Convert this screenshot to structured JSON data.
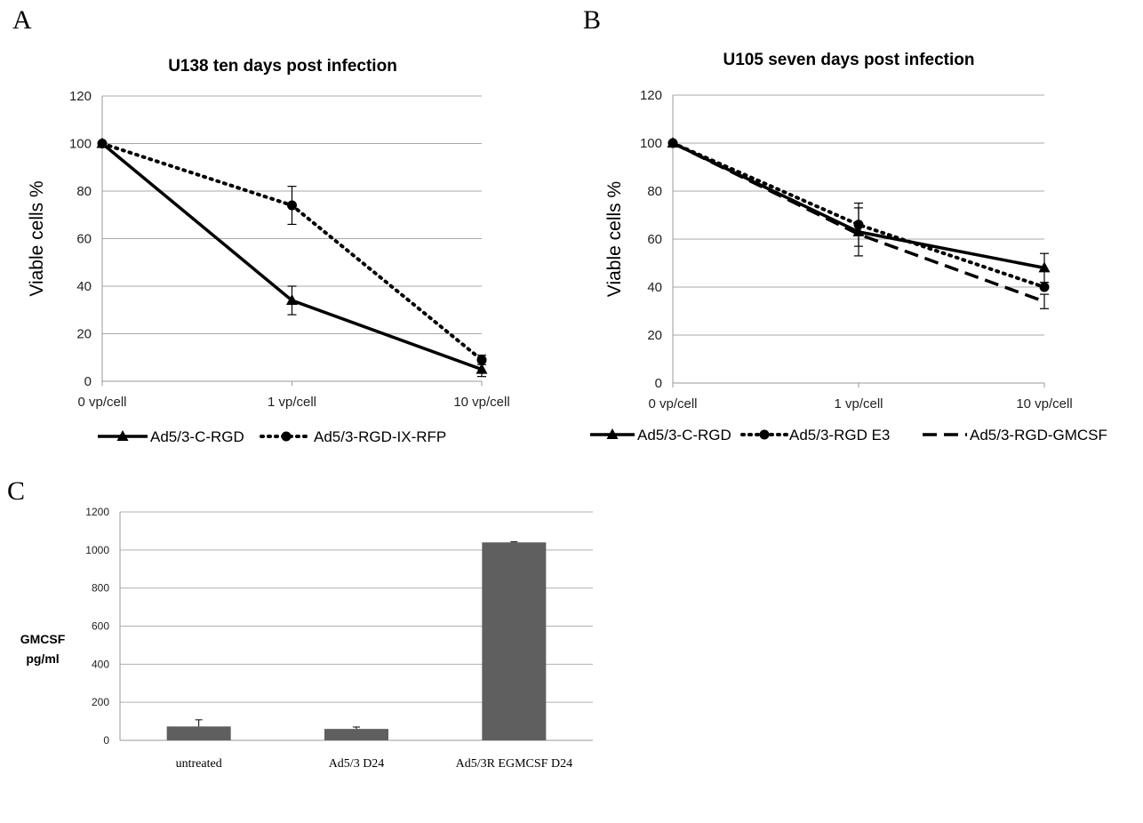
{
  "chart_data": [
    {
      "panel": "A",
      "type": "line",
      "title": "U138 ten days post infection",
      "ylabel": "Viable cells %",
      "xlabel": "",
      "categories": [
        "0 vp/cell",
        "1 vp/cell",
        "10 vp/cell"
      ],
      "ylim": [
        0,
        120
      ],
      "yticks": [
        0,
        20,
        40,
        60,
        80,
        100,
        120
      ],
      "grid": "horizontal",
      "legend": "bottom",
      "series": [
        {
          "name": "Ad5/3-C-RGD",
          "values": [
            100,
            34,
            5
          ],
          "errors": [
            0,
            6,
            3
          ],
          "marker": "triangle",
          "dash": "solid"
        },
        {
          "name": "Ad5/3-RGD-IX-RFP",
          "values": [
            100,
            74,
            9
          ],
          "errors": [
            0,
            8,
            2
          ],
          "marker": "circle",
          "dash": "dotted"
        }
      ]
    },
    {
      "panel": "B",
      "type": "line",
      "title": "U105 seven days post infection",
      "ylabel": "Viable cells %",
      "xlabel": "",
      "categories": [
        "0 vp/cell",
        "1 vp/cell",
        "10 vp/cell"
      ],
      "ylim": [
        0,
        120
      ],
      "yticks": [
        0,
        20,
        40,
        60,
        80,
        100,
        120
      ],
      "grid": "horizontal",
      "legend": "bottom",
      "series": [
        {
          "name": "Ad5/3-C-RGD",
          "values": [
            100,
            63,
            48
          ],
          "errors": [
            0,
            10,
            6
          ],
          "marker": "triangle",
          "dash": "solid"
        },
        {
          "name": "Ad5/3-RGD E3",
          "values": [
            100,
            66,
            40
          ],
          "errors": [
            0,
            9,
            0
          ],
          "marker": "circle",
          "dash": "dotted"
        },
        {
          "name": "Ad5/3-RGD-GMCSF",
          "values": [
            100,
            62,
            34
          ],
          "errors": [
            0,
            0,
            3
          ],
          "marker": "none",
          "dash": "dashed"
        }
      ]
    },
    {
      "panel": "C",
      "type": "bar",
      "title": "",
      "ylabel": "GMCSF pg/ml",
      "ylabel_lines": [
        "GMCSF",
        "pg/ml"
      ],
      "xlabel": "",
      "categories": [
        "untreated",
        "Ad5/3 D24",
        "Ad5/3R EGMCSF D24"
      ],
      "values": [
        73,
        60,
        1040
      ],
      "errors": [
        35,
        10,
        3
      ],
      "ylim": [
        0,
        1200
      ],
      "yticks": [
        0,
        200,
        400,
        600,
        800,
        1000,
        1200
      ],
      "grid": "horizontal",
      "color": "#5f5f5f"
    }
  ]
}
